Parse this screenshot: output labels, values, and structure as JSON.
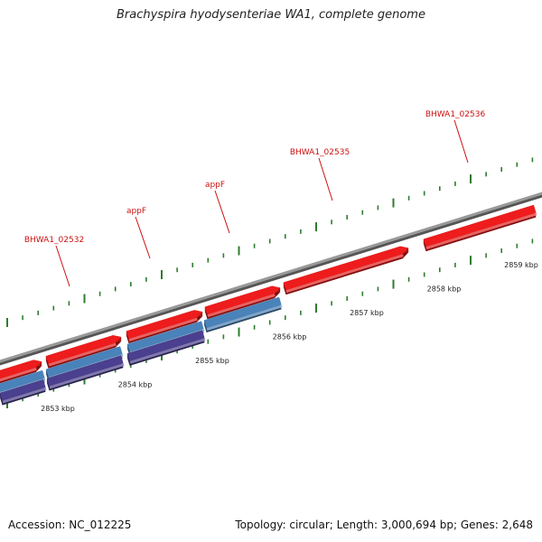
{
  "title": "Brachyspira hyodysenteriae WA1, complete genome",
  "footer": {
    "accession": "Accession: NC_012225",
    "summary": "Topology: circular; Length: 3,000,694 bp; Genes: 2,648"
  },
  "colors": {
    "forward_gene": "#ee1c1c",
    "cds_blue": "#4a82ba",
    "cds_purple": "#4b3f8f",
    "label": "#cc1111",
    "tick": "#2e7d2e",
    "backbone": "#808080"
  },
  "gene_labels": [
    "BHWA1_02532",
    "appF",
    "appF",
    "BHWA1_02535",
    "BHWA1_02536"
  ],
  "ruler_labels": [
    "2853 kbp",
    "2854 kbp",
    "2855 kbp",
    "2856 kbp",
    "2857 kbp",
    "2858 kbp",
    "2859 kbp"
  ]
}
